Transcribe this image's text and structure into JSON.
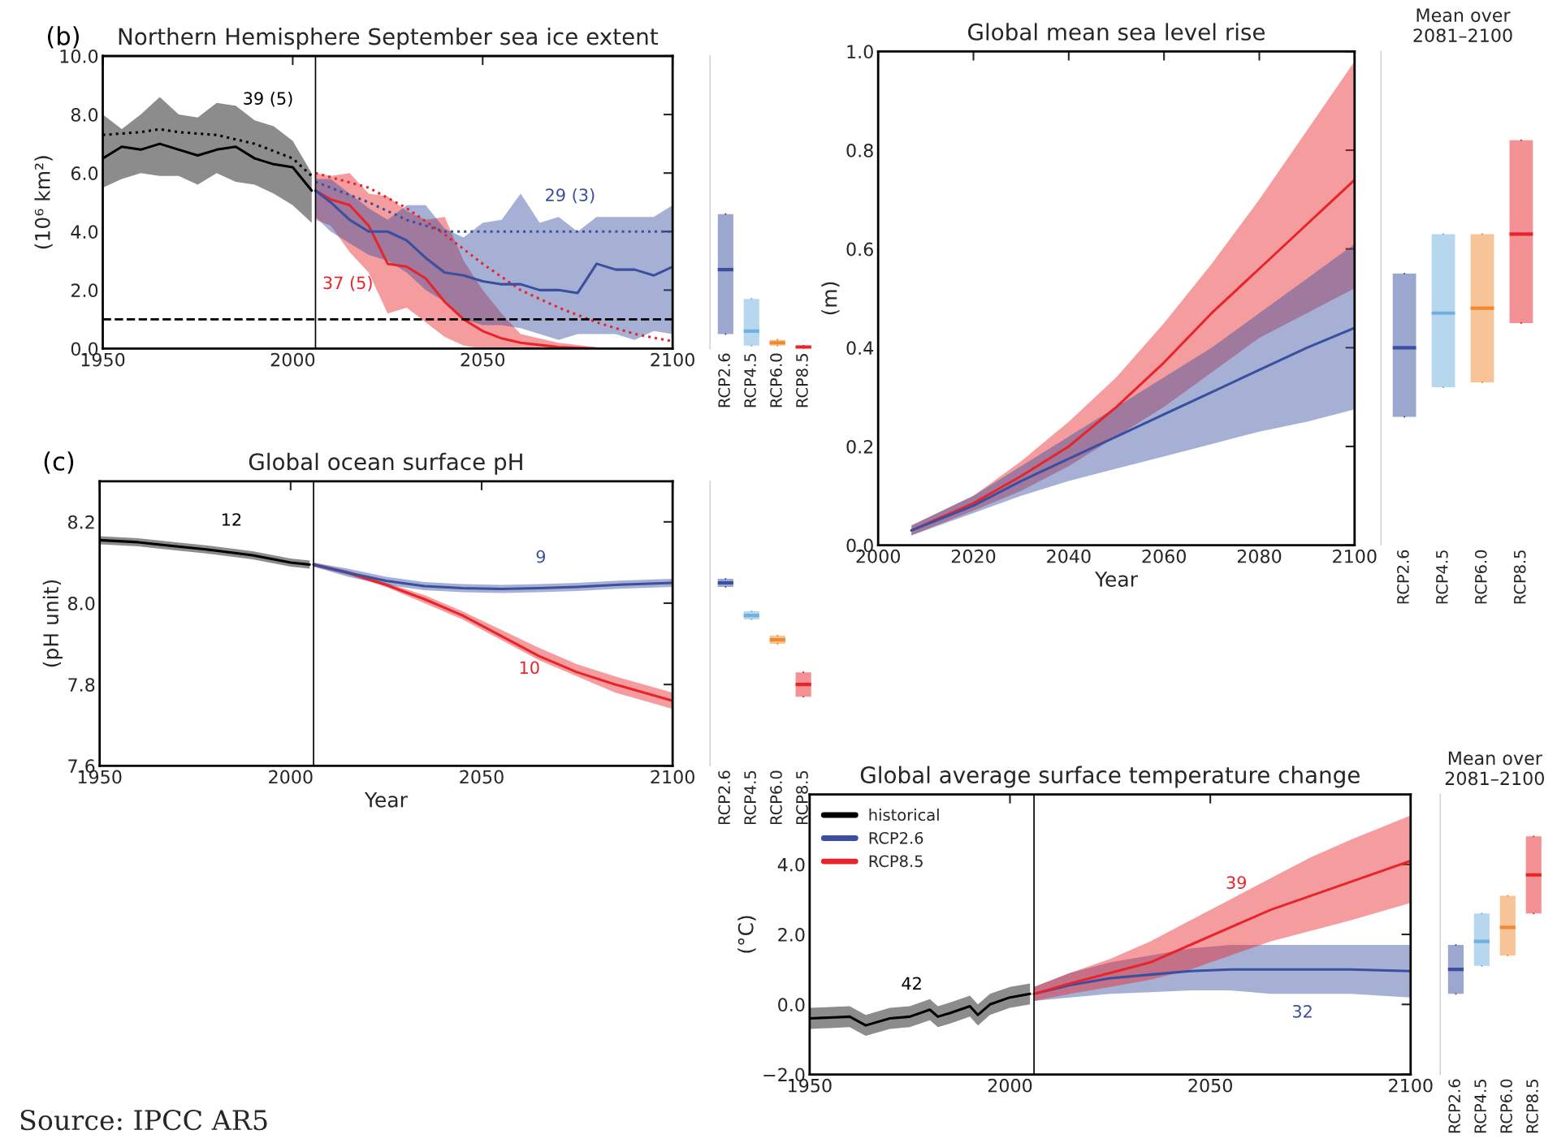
{
  "chart_data": [
    {
      "type": "line",
      "title": "Northern Hemisphere September sea ice extent",
      "ylabel": "(10⁶ km²)",
      "xlim": [
        1950,
        2100
      ],
      "xticks": [
        1950,
        2000,
        2050,
        2100
      ],
      "ylim": [
        0,
        10
      ],
      "yticks": [
        {
          "value": 0,
          "label": "0.0"
        },
        {
          "value": 2,
          "label": "2.0"
        },
        {
          "value": 4,
          "label": "4.0"
        },
        {
          "value": 6,
          "label": "6.0"
        },
        {
          "value": 8,
          "label": "8.0"
        },
        {
          "value": 10,
          "label": "10.0"
        }
      ],
      "series": [
        {
          "color": "#000000",
          "x": [
            1950,
            1955,
            1960,
            1965,
            1970,
            1975,
            1980,
            1985,
            1990,
            1995,
            2000,
            2005
          ],
          "values": [
            6.5,
            6.9,
            6.8,
            7.0,
            6.8,
            6.6,
            6.8,
            6.9,
            6.5,
            6.3,
            6.2,
            5.4
          ],
          "lower": [
            5.5,
            5.8,
            6.0,
            5.9,
            5.9,
            5.6,
            6.0,
            5.7,
            5.6,
            5.3,
            4.9,
            4.3
          ],
          "upper": [
            8.0,
            7.5,
            8.0,
            8.6,
            8.0,
            7.9,
            8.4,
            8.3,
            7.8,
            7.6,
            7.1,
            6.0
          ]
        },
        {
          "color": "#000000",
          "line_style": "dotted",
          "x": [
            1950,
            1960,
            1965,
            1970,
            1980,
            1990,
            2000,
            2005
          ],
          "values": [
            7.3,
            7.4,
            7.5,
            7.4,
            7.3,
            7.0,
            6.5,
            5.9
          ]
        },
        {
          "color": "#e8242a",
          "x": [
            2006,
            2010,
            2015,
            2020,
            2025,
            2030,
            2035,
            2040,
            2045,
            2050,
            2055,
            2060,
            2070,
            2080,
            2090,
            2100
          ],
          "values": [
            5.4,
            5.1,
            4.9,
            4.2,
            2.9,
            2.8,
            2.4,
            1.6,
            1.0,
            0.6,
            0.35,
            0.2,
            0.05,
            0.0,
            0.0,
            0.0
          ],
          "lower": [
            4.4,
            4.2,
            3.3,
            2.6,
            1.2,
            1.4,
            0.9,
            0.4,
            0.1,
            0.0,
            0.0,
            0.0,
            0.0,
            0.0,
            0.0,
            0.0
          ],
          "upper": [
            6.0,
            5.9,
            6.0,
            5.3,
            5.2,
            4.7,
            4.4,
            4.5,
            3.0,
            2.0,
            1.2,
            0.5,
            0.2,
            0.05,
            0.0,
            0.0
          ]
        },
        {
          "color": "#e8242a",
          "line_style": "dotted",
          "x": [
            2006,
            2020,
            2030,
            2040,
            2050,
            2060,
            2070,
            2080,
            2090,
            2100
          ],
          "values": [
            6.0,
            5.5,
            4.8,
            3.9,
            2.9,
            2.0,
            1.4,
            0.9,
            0.5,
            0.25
          ]
        },
        {
          "color": "#3a4fa0",
          "x": [
            2006,
            2010,
            2015,
            2020,
            2025,
            2030,
            2035,
            2040,
            2045,
            2050,
            2055,
            2060,
            2065,
            2070,
            2075,
            2080,
            2085,
            2090,
            2095,
            2100
          ],
          "values": [
            5.4,
            5.0,
            4.4,
            4.0,
            4.0,
            3.7,
            3.1,
            2.6,
            2.5,
            2.3,
            2.2,
            2.2,
            2.0,
            2.0,
            1.9,
            2.9,
            2.7,
            2.7,
            2.5,
            2.8
          ],
          "lower": [
            4.5,
            4.0,
            3.6,
            3.2,
            3.0,
            2.6,
            2.0,
            1.6,
            1.0,
            0.8,
            0.8,
            0.7,
            0.5,
            0.3,
            0.5,
            0.5,
            0.5,
            0.3,
            0.6,
            0.5
          ],
          "upper": [
            5.8,
            5.8,
            5.3,
            4.8,
            4.4,
            4.9,
            4.9,
            4.1,
            3.8,
            4.3,
            4.4,
            5.3,
            4.3,
            4.5,
            4.0,
            4.5,
            4.5,
            4.5,
            4.5,
            4.9
          ]
        },
        {
          "color": "#3a4fa0",
          "line_style": "dotted",
          "x": [
            2006,
            2020,
            2030,
            2040,
            2050,
            2060,
            2070,
            2080,
            2090,
            2100
          ],
          "values": [
            5.7,
            5.0,
            4.4,
            4.0,
            4.0,
            4.0,
            4.0,
            4.0,
            4.0,
            4.0
          ]
        }
      ],
      "ref_lines": [
        {
          "axis": "x",
          "value": 2006,
          "color": "#000000",
          "line_style": "solid"
        },
        {
          "axis": "y",
          "value": 1.0,
          "color": "#000000",
          "line_style": "dashed"
        }
      ],
      "annotations": [
        "(b)",
        "39 (5)",
        "29 (3)",
        "37 (5)"
      ]
    },
    {
      "type": "box",
      "categories": [
        "RCP2.6",
        "RCP4.5",
        "RCP6.0",
        "RCP8.5"
      ],
      "ylim": [
        0,
        10
      ],
      "tick_labels": "x",
      "colors": [
        "#3a4fa0",
        "#6fb0e0",
        "#f08a30",
        "#e8242a"
      ],
      "boxes": [
        {
          "low": 0.5,
          "q1": 0.5,
          "median": 2.7,
          "q3": 4.6,
          "high": 4.6
        },
        {
          "low": 0.1,
          "q1": 0.1,
          "median": 0.6,
          "q3": 1.7,
          "high": 1.7
        },
        {
          "low": 0.1,
          "q1": 0.1,
          "median": 0.2,
          "q3": 0.3,
          "high": 0.3
        },
        {
          "low": 0.0,
          "q1": 0.0,
          "median": 0.05,
          "q3": 0.1,
          "high": 0.1
        }
      ]
    },
    {
      "type": "line",
      "title": "Global mean sea level rise",
      "xlabel": "Year",
      "ylabel": "(m)",
      "xlim": [
        2000,
        2100
      ],
      "xticks": [
        2000,
        2020,
        2040,
        2060,
        2080,
        2100
      ],
      "ylim": [
        0,
        1
      ],
      "yticks": [
        {
          "value": 0,
          "label": "0.0"
        },
        {
          "value": 0.2,
          "label": "0.2"
        },
        {
          "value": 0.4,
          "label": "0.4"
        },
        {
          "value": 0.6,
          "label": "0.6"
        },
        {
          "value": 0.8,
          "label": "0.8"
        },
        {
          "value": 1,
          "label": "1.0"
        }
      ],
      "series": [
        {
          "color": "#e8242a",
          "x": [
            2007,
            2020,
            2030,
            2040,
            2050,
            2060,
            2070,
            2080,
            2090,
            2100
          ],
          "values": [
            0.03,
            0.085,
            0.14,
            0.2,
            0.28,
            0.37,
            0.47,
            0.56,
            0.65,
            0.74
          ],
          "lower": [
            0.02,
            0.07,
            0.11,
            0.16,
            0.22,
            0.28,
            0.35,
            0.42,
            0.47,
            0.52
          ],
          "upper": [
            0.04,
            0.1,
            0.17,
            0.25,
            0.34,
            0.45,
            0.57,
            0.7,
            0.84,
            0.98
          ]
        },
        {
          "color": "#3a4fa0",
          "x": [
            2007,
            2020,
            2030,
            2040,
            2050,
            2060,
            2070,
            2080,
            2090,
            2100
          ],
          "values": [
            0.03,
            0.08,
            0.13,
            0.175,
            0.22,
            0.265,
            0.31,
            0.355,
            0.4,
            0.44
          ],
          "lower": [
            0.02,
            0.065,
            0.1,
            0.13,
            0.155,
            0.18,
            0.205,
            0.23,
            0.25,
            0.275
          ],
          "upper": [
            0.04,
            0.1,
            0.16,
            0.22,
            0.28,
            0.34,
            0.4,
            0.47,
            0.54,
            0.61
          ]
        }
      ]
    },
    {
      "type": "box",
      "title": "Mean over\n2081–2100",
      "categories": [
        "RCP2.6",
        "RCP4.5",
        "RCP6.0",
        "RCP8.5"
      ],
      "ylim": [
        0,
        1
      ],
      "tick_labels": "x",
      "colors": [
        "#3a4fa0",
        "#6fb0e0",
        "#f08a30",
        "#e8242a"
      ],
      "boxes": [
        {
          "low": 0.26,
          "q1": 0.26,
          "median": 0.4,
          "q3": 0.55,
          "high": 0.55
        },
        {
          "low": 0.32,
          "q1": 0.32,
          "median": 0.47,
          "q3": 0.63,
          "high": 0.63
        },
        {
          "low": 0.33,
          "q1": 0.33,
          "median": 0.48,
          "q3": 0.63,
          "high": 0.63
        },
        {
          "low": 0.45,
          "q1": 0.45,
          "median": 0.63,
          "q3": 0.82,
          "high": 0.82
        }
      ]
    },
    {
      "type": "line",
      "title": "Global ocean surface pH",
      "xlabel": "Year",
      "ylabel": "(pH unit)",
      "xlim": [
        1950,
        2100
      ],
      "xticks": [
        1950,
        2000,
        2050,
        2100
      ],
      "ylim": [
        7.6,
        8.3
      ],
      "yticks": [
        {
          "value": 7.6,
          "label": "7.6"
        },
        {
          "value": 7.8,
          "label": "7.8"
        },
        {
          "value": 8.0,
          "label": "8.0"
        },
        {
          "value": 8.2,
          "label": "8.2"
        }
      ],
      "series": [
        {
          "color": "#000000",
          "x": [
            1950,
            1960,
            1970,
            1980,
            1990,
            2000,
            2005
          ],
          "values": [
            8.155,
            8.15,
            8.14,
            8.13,
            8.118,
            8.1,
            8.095
          ],
          "lower": [
            8.145,
            8.14,
            8.13,
            8.12,
            8.108,
            8.09,
            8.085
          ],
          "upper": [
            8.165,
            8.16,
            8.15,
            8.14,
            8.128,
            8.11,
            8.105
          ]
        },
        {
          "color": "#e8242a",
          "x": [
            2006,
            2015,
            2025,
            2035,
            2045,
            2055,
            2065,
            2075,
            2085,
            2100
          ],
          "values": [
            8.095,
            8.075,
            8.045,
            8.01,
            7.97,
            7.92,
            7.87,
            7.83,
            7.8,
            7.76
          ],
          "lower": [
            8.09,
            8.07,
            8.04,
            8.0,
            7.96,
            7.91,
            7.86,
            7.82,
            7.78,
            7.74
          ],
          "upper": [
            8.1,
            8.08,
            8.05,
            8.02,
            7.98,
            7.935,
            7.89,
            7.85,
            7.82,
            7.78
          ]
        },
        {
          "color": "#3a4fa0",
          "x": [
            2006,
            2015,
            2025,
            2035,
            2045,
            2055,
            2065,
            2075,
            2085,
            2100
          ],
          "values": [
            8.095,
            8.075,
            8.055,
            8.042,
            8.037,
            8.035,
            8.037,
            8.04,
            8.045,
            8.05
          ],
          "lower": [
            8.09,
            8.065,
            8.045,
            8.032,
            8.027,
            8.025,
            8.027,
            8.03,
            8.035,
            8.04
          ],
          "upper": [
            8.1,
            8.085,
            8.065,
            8.052,
            8.047,
            8.045,
            8.047,
            8.05,
            8.055,
            8.06
          ]
        }
      ],
      "ref_lines": [
        {
          "axis": "x",
          "value": 2006,
          "color": "#000000",
          "line_style": "solid"
        }
      ],
      "annotations": [
        "(c)",
        "12",
        "9",
        "10"
      ]
    },
    {
      "type": "box",
      "categories": [
        "RCP2.6",
        "RCP4.5",
        "RCP6.0",
        "RCP8.5"
      ],
      "ylim": [
        7.6,
        8.3
      ],
      "tick_labels": "x",
      "colors": [
        "#3a4fa0",
        "#6fb0e0",
        "#f08a30",
        "#e8242a"
      ],
      "boxes": [
        {
          "low": 8.04,
          "q1": 8.04,
          "median": 8.05,
          "q3": 8.06,
          "high": 8.06
        },
        {
          "low": 7.96,
          "q1": 7.96,
          "median": 7.97,
          "q3": 7.98,
          "high": 7.98
        },
        {
          "low": 7.9,
          "q1": 7.9,
          "median": 7.91,
          "q3": 7.92,
          "high": 7.92
        },
        {
          "low": 7.77,
          "q1": 7.77,
          "median": 7.8,
          "q3": 7.83,
          "high": 7.83
        }
      ]
    },
    {
      "type": "line",
      "title": "Global average surface temperature change",
      "ylabel": "(°C)",
      "legend": "top left",
      "xlim": [
        1950,
        2100
      ],
      "xticks": [
        1950,
        2000,
        2050,
        2100
      ],
      "ylim": [
        -2,
        6
      ],
      "yticks": [
        {
          "value": -2,
          "label": "−2.0"
        },
        {
          "value": 0,
          "label": "0.0"
        },
        {
          "value": 2,
          "label": "2.0"
        },
        {
          "value": 4,
          "label": "4.0"
        }
      ],
      "series": [
        {
          "name": "historical",
          "color": "#000000",
          "x": [
            1950,
            1960,
            1964,
            1970,
            1975,
            1980,
            1982,
            1985,
            1990,
            1992,
            1995,
            2000,
            2005
          ],
          "values": [
            -0.4,
            -0.35,
            -0.6,
            -0.4,
            -0.35,
            -0.15,
            -0.35,
            -0.25,
            -0.05,
            -0.3,
            0.0,
            0.2,
            0.3
          ],
          "lower": [
            -0.7,
            -0.65,
            -0.9,
            -0.7,
            -0.65,
            -0.45,
            -0.65,
            -0.55,
            -0.35,
            -0.6,
            -0.3,
            -0.1,
            0.0
          ],
          "upper": [
            -0.1,
            -0.05,
            -0.3,
            -0.1,
            -0.05,
            0.15,
            -0.05,
            0.05,
            0.25,
            0.0,
            0.3,
            0.5,
            0.6
          ]
        },
        {
          "name": "RCP2.6",
          "color": "#3a4fa0",
          "x": [
            2006,
            2015,
            2025,
            2035,
            2045,
            2055,
            2065,
            2075,
            2085,
            2100
          ],
          "values": [
            0.3,
            0.55,
            0.75,
            0.85,
            0.95,
            1.0,
            1.0,
            1.0,
            1.0,
            0.95
          ],
          "lower": [
            0.1,
            0.2,
            0.3,
            0.35,
            0.4,
            0.4,
            0.3,
            0.3,
            0.3,
            0.2
          ],
          "upper": [
            0.5,
            0.9,
            1.2,
            1.4,
            1.6,
            1.7,
            1.7,
            1.7,
            1.7,
            1.7
          ]
        },
        {
          "name": "RCP8.5",
          "color": "#e8242a",
          "x": [
            2006,
            2015,
            2025,
            2035,
            2045,
            2055,
            2065,
            2075,
            2085,
            2100
          ],
          "values": [
            0.3,
            0.6,
            0.9,
            1.2,
            1.7,
            2.2,
            2.7,
            3.1,
            3.5,
            4.1
          ],
          "lower": [
            0.1,
            0.3,
            0.5,
            0.7,
            1.0,
            1.4,
            1.8,
            2.1,
            2.4,
            2.9
          ],
          "upper": [
            0.5,
            0.9,
            1.3,
            1.8,
            2.4,
            3.0,
            3.6,
            4.2,
            4.7,
            5.4
          ]
        }
      ],
      "ref_lines": [
        {
          "axis": "x",
          "value": 2006,
          "color": "#000000",
          "line_style": "solid"
        }
      ],
      "annotations": [
        "42",
        "39",
        "32"
      ]
    },
    {
      "type": "box",
      "title": "Mean over\n2081–2100",
      "categories": [
        "RCP2.6",
        "RCP4.5",
        "RCP6.0",
        "RCP8.5"
      ],
      "ylim": [
        -2,
        6
      ],
      "tick_labels": "x",
      "colors": [
        "#3a4fa0",
        "#6fb0e0",
        "#f08a30",
        "#e8242a"
      ],
      "boxes": [
        {
          "low": 0.3,
          "q1": 0.3,
          "median": 1.0,
          "q3": 1.7,
          "high": 1.7
        },
        {
          "low": 1.1,
          "q1": 1.1,
          "median": 1.8,
          "q3": 2.6,
          "high": 2.6
        },
        {
          "low": 1.4,
          "q1": 1.4,
          "median": 2.2,
          "q3": 3.1,
          "high": 3.1
        },
        {
          "low": 2.6,
          "q1": 2.6,
          "median": 3.7,
          "q3": 4.8,
          "high": 4.8
        }
      ]
    },
    {
      "type": "other",
      "annotations": [
        "Source: IPCC AR5"
      ]
    }
  ]
}
